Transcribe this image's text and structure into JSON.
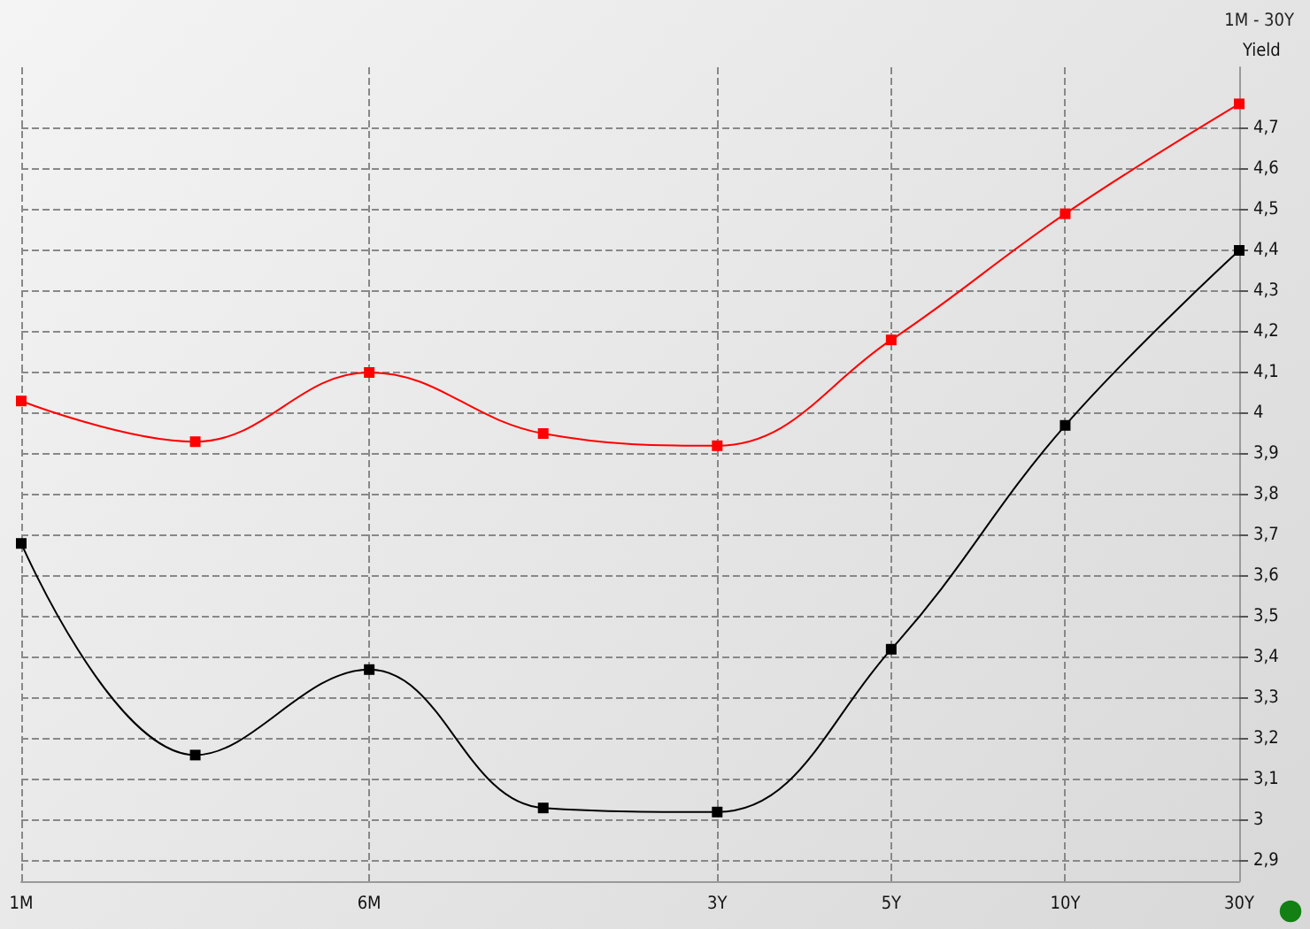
{
  "chart_data": {
    "type": "line",
    "title": "1M - 30Y",
    "ylabel": "Yield",
    "categories": [
      "1M",
      null,
      "6M",
      null,
      "3Y",
      "5Y",
      "10Y",
      "30Y"
    ],
    "series": [
      {
        "color": "#ff0000",
        "values": [
          4.03,
          3.93,
          4.1,
          3.95,
          3.92,
          4.18,
          4.49,
          4.76
        ]
      },
      {
        "color": "#000000",
        "values": [
          3.68,
          3.16,
          3.37,
          3.03,
          3.02,
          3.42,
          3.97,
          4.4
        ]
      }
    ],
    "ylim": [
      2.85,
      4.85
    ],
    "yticks": [
      {
        "value": 2.9,
        "label": "2,9"
      },
      3,
      {
        "value": 3.1,
        "label": "3,1"
      },
      {
        "value": 3.2,
        "label": "3,2"
      },
      {
        "value": 3.3,
        "label": "3,3"
      },
      {
        "value": 3.4,
        "label": "3,4"
      },
      {
        "value": 3.5,
        "label": "3,5"
      },
      {
        "value": 3.6,
        "label": "3,6"
      },
      {
        "value": 3.7,
        "label": "3,7"
      },
      {
        "value": 3.8,
        "label": "3,8"
      },
      {
        "value": 3.9,
        "label": "3,9"
      },
      4,
      {
        "value": 4.1,
        "label": "4,1"
      },
      {
        "value": 4.2,
        "label": "4,2"
      },
      {
        "value": 4.3,
        "label": "4,3"
      },
      {
        "value": 4.4,
        "label": "4,4"
      },
      {
        "value": 4.5,
        "label": "4,5"
      },
      {
        "value": 4.6,
        "label": "4,6"
      },
      {
        "value": 4.7,
        "label": "4,7"
      }
    ],
    "grid": true,
    "marker": "square"
  }
}
